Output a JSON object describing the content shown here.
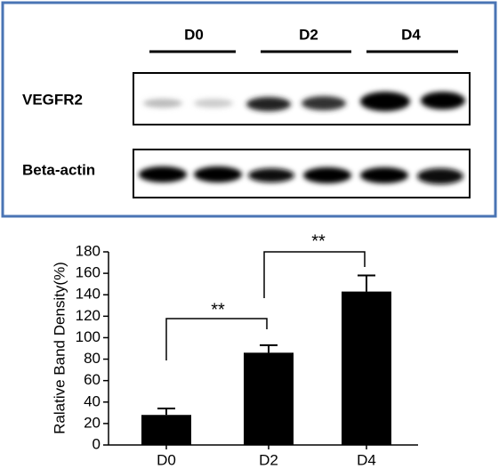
{
  "blot": {
    "lanes": [
      "D0",
      "D2",
      "D4"
    ],
    "rows": [
      "VEGFR2",
      "Beta-actin"
    ]
  },
  "chart_data": {
    "type": "bar",
    "y_label": "Ralative Band Density(%)",
    "categories": [
      "D0",
      "D2",
      "D4"
    ],
    "values": [
      28,
      86,
      143
    ],
    "errors": [
      6,
      7,
      15
    ],
    "color": "#000000",
    "ylim": [
      0,
      180
    ],
    "yticks": [
      0,
      20,
      40,
      60,
      80,
      100,
      120,
      140,
      160,
      180
    ],
    "annotations": [
      "**",
      "**"
    ]
  }
}
